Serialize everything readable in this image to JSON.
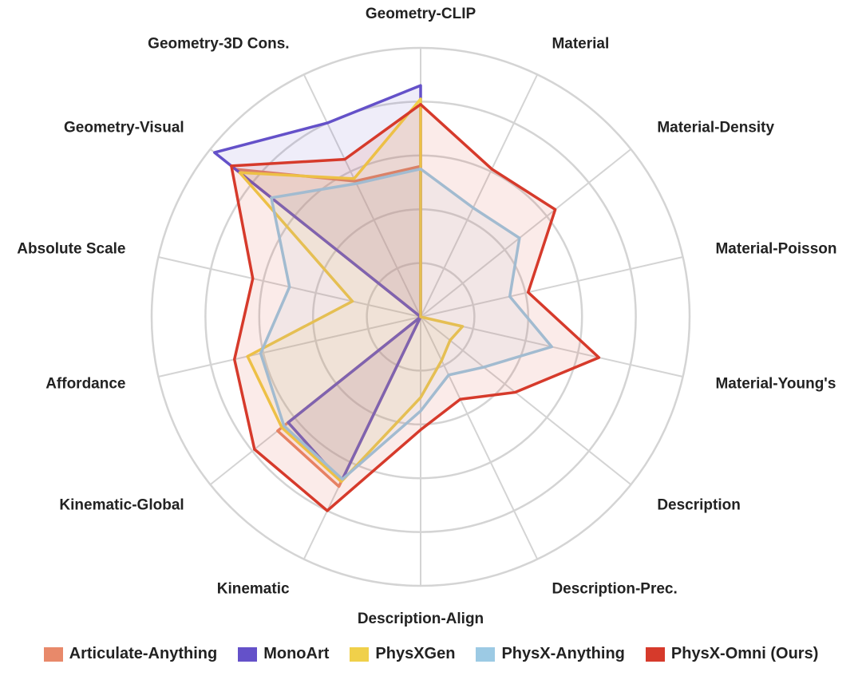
{
  "chart_data": {
    "type": "radar",
    "axes": [
      "Geometry-CLIP",
      "Material",
      "Material-Density",
      "Material-Poisson",
      "Material-Young's",
      "Description",
      "Description-Prec.",
      "Description-Align",
      "Kinematic",
      "Kinematic-Global",
      "Affordance",
      "Absolute Scale",
      "Geometry-Visual",
      "Geometry-3D Cons."
    ],
    "rlim": [
      0,
      100
    ],
    "rticks": [
      20,
      40,
      60,
      80,
      100
    ],
    "grid": true,
    "legend": "bottom",
    "series": [
      {
        "name": "Articulate-Anything",
        "color": "#e8896a",
        "values": [
          56,
          0,
          0,
          0,
          0,
          0,
          0,
          0,
          70,
          68,
          0,
          0,
          88,
          56
        ]
      },
      {
        "name": "MonoArt",
        "color": "#6451c9",
        "values": [
          86,
          0,
          0,
          0,
          0,
          0,
          0,
          0,
          68,
          63,
          0,
          0,
          98,
          80
        ]
      },
      {
        "name": "PhysXGen",
        "color": "#f0d04a",
        "values": [
          81,
          0,
          0,
          0,
          16,
          14,
          18,
          30,
          68,
          66,
          66,
          26,
          86,
          57
        ]
      },
      {
        "name": "PhysX-Anything",
        "color": "#9ccae4",
        "values": [
          55,
          45,
          47,
          34,
          50,
          30,
          24,
          35,
          67,
          65,
          61,
          50,
          71,
          55
        ]
      },
      {
        "name": "PhysX-Omni (Ours)",
        "color": "#d63a2b",
        "values": [
          79,
          61,
          64,
          41,
          68,
          45,
          34,
          42,
          80,
          79,
          71,
          64,
          90,
          65
        ]
      }
    ]
  }
}
